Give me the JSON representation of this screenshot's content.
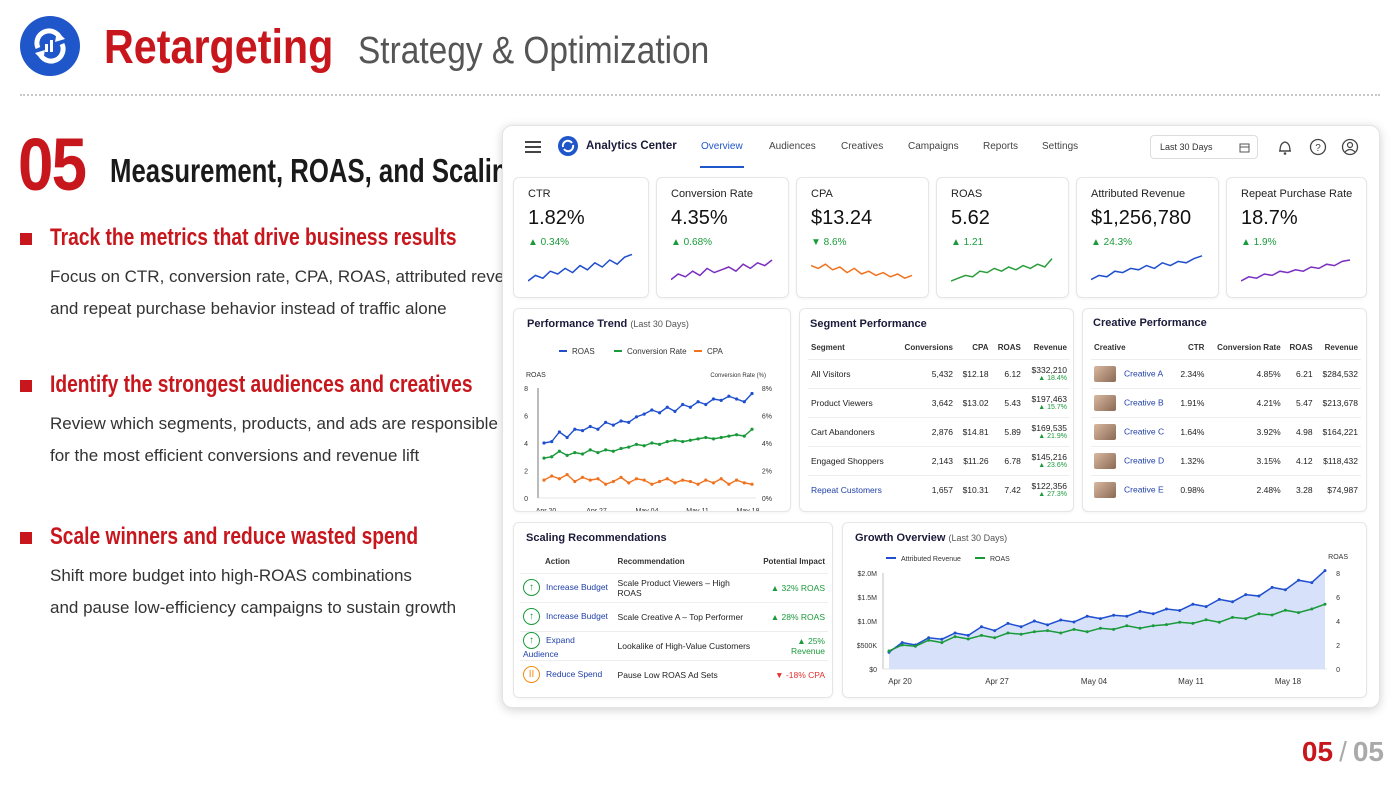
{
  "header": {
    "title": "Retargeting",
    "subtitle": "Strategy & Optimization"
  },
  "section": {
    "number": "05",
    "title": "Measurement, ROAS, and Scaling"
  },
  "bullets": [
    {
      "heading": "Track the metrics that drive business results",
      "lines": [
        "Focus on CTR, conversion rate, CPA, ROAS, attributed revenue,",
        "and repeat purchase behavior instead of traffic alone"
      ]
    },
    {
      "heading": "Identify the strongest audiences and creatives",
      "lines": [
        "Review which segments, products, and ads are responsible",
        "for the most efficient conversions and revenue lift"
      ]
    },
    {
      "heading": "Scale winners and reduce wasted spend",
      "lines": [
        "Shift more budget into high-ROAS combinations",
        "and pause low-efficiency campaigns to sustain growth"
      ]
    }
  ],
  "dashboard": {
    "app_name": "Analytics Center",
    "tabs": [
      "Overview",
      "Audiences",
      "Creatives",
      "Campaigns",
      "Reports",
      "Settings"
    ],
    "active_tab": "Overview",
    "date_range": "Last 30 Days",
    "kpis": [
      {
        "label": "CTR",
        "value": "1.82%",
        "change": "▲ 0.34%",
        "color": "#1f4fcf"
      },
      {
        "label": "Conversion Rate",
        "value": "4.35%",
        "change": "▲ 0.68%",
        "color": "#7a2fc0"
      },
      {
        "label": "CPA",
        "value": "$13.24",
        "change": "▼ 8.6%",
        "color": "#f0721f"
      },
      {
        "label": "ROAS",
        "value": "5.62",
        "change": "▲ 1.21",
        "color": "#2a9d3a"
      },
      {
        "label": "Attributed Revenue",
        "value": "$1,256,780",
        "change": "▲ 24.3%",
        "color": "#1f4fcf"
      },
      {
        "label": "Repeat Purchase Rate",
        "value": "18.7%",
        "change": "▲ 1.9%",
        "color": "#7a2fc0"
      }
    ],
    "trend": {
      "title": "Performance Trend",
      "subtitle": "(Last 30 Days)",
      "legend": [
        "ROAS",
        "Conversion Rate",
        "CPA"
      ],
      "left_axis_label": "ROAS",
      "right_axis_label": "Conversion Rate (%)",
      "left_ticks": [
        "8",
        "6",
        "4",
        "2",
        "0"
      ],
      "right_ticks": [
        "8%",
        "6%",
        "4%",
        "2%",
        "0%"
      ],
      "x_ticks": [
        "Apr 20",
        "Apr 27",
        "May 04",
        "May 11",
        "May 18"
      ]
    },
    "segments": {
      "title": "Segment Performance",
      "columns": [
        "Segment",
        "Conversions",
        "CPA",
        "ROAS",
        "Revenue"
      ],
      "rows": [
        {
          "name": "All Visitors",
          "conv": "5,432",
          "cpa": "$12.18",
          "roas": "6.12",
          "rev": "$332,210",
          "chg": "▲ 18.4%"
        },
        {
          "name": "Product Viewers",
          "conv": "3,642",
          "cpa": "$13.02",
          "roas": "5.43",
          "rev": "$197,463",
          "chg": "▲ 15.7%"
        },
        {
          "name": "Cart Abandoners",
          "conv": "2,876",
          "cpa": "$14.81",
          "roas": "5.89",
          "rev": "$169,535",
          "chg": "▲ 21.9%"
        },
        {
          "name": "Engaged Shoppers",
          "conv": "2,143",
          "cpa": "$11.26",
          "roas": "6.78",
          "rev": "$145,216",
          "chg": "▲ 23.6%"
        },
        {
          "name": "Repeat Customers",
          "conv": "1,657",
          "cpa": "$10.31",
          "roas": "7.42",
          "rev": "$122,356",
          "chg": "▲ 27.3%"
        }
      ]
    },
    "creatives": {
      "title": "Creative Performance",
      "columns": [
        "Creative",
        "CTR",
        "Conversion Rate",
        "ROAS",
        "Revenue"
      ],
      "rows": [
        {
          "name": "Creative A",
          "ctr": "2.34%",
          "cr": "4.85%",
          "roas": "6.21",
          "rev": "$284,532"
        },
        {
          "name": "Creative B",
          "ctr": "1.91%",
          "cr": "4.21%",
          "roas": "5.47",
          "rev": "$213,678"
        },
        {
          "name": "Creative C",
          "ctr": "1.64%",
          "cr": "3.92%",
          "roas": "4.98",
          "rev": "$164,221"
        },
        {
          "name": "Creative D",
          "ctr": "1.32%",
          "cr": "3.15%",
          "roas": "4.12",
          "rev": "$118,432"
        },
        {
          "name": "Creative E",
          "ctr": "0.98%",
          "cr": "2.48%",
          "roas": "3.28",
          "rev": "$74,987"
        }
      ]
    },
    "scaling": {
      "title": "Scaling Recommendations",
      "columns": [
        "Action",
        "Recommendation",
        "Potential Impact"
      ],
      "rows": [
        {
          "action": "Increase Budget",
          "rec": "Scale Product Viewers – High ROAS",
          "impact": "▲ 32% ROAS",
          "icon": "↑"
        },
        {
          "action": "Increase Budget",
          "rec": "Scale Creative A – Top Performer",
          "impact": "▲ 28% ROAS",
          "icon": "↑"
        },
        {
          "action": "Expand Audience",
          "rec": "Lookalike of High-Value Customers",
          "impact": "▲ 25% Revenue",
          "icon": "↑"
        },
        {
          "action": "Reduce Spend",
          "rec": "Pause Low ROAS Ad Sets",
          "impact": "▼ -18% CPA",
          "icon": "II"
        }
      ]
    },
    "growth": {
      "title": "Growth Overview",
      "subtitle": "(Last 30 Days)",
      "legend": [
        "Attributed Revenue",
        "ROAS"
      ],
      "right_axis_label": "ROAS",
      "left_ticks": [
        "$2.0M",
        "$1.5M",
        "$1.0M",
        "$500K",
        "$0"
      ],
      "right_ticks": [
        "8",
        "6",
        "4",
        "2",
        "0"
      ],
      "x_ticks": [
        "Apr 20",
        "Apr 27",
        "May 04",
        "May 11",
        "May 18"
      ]
    }
  },
  "pager": {
    "current": "05",
    "sep": "/",
    "total": "05"
  }
}
